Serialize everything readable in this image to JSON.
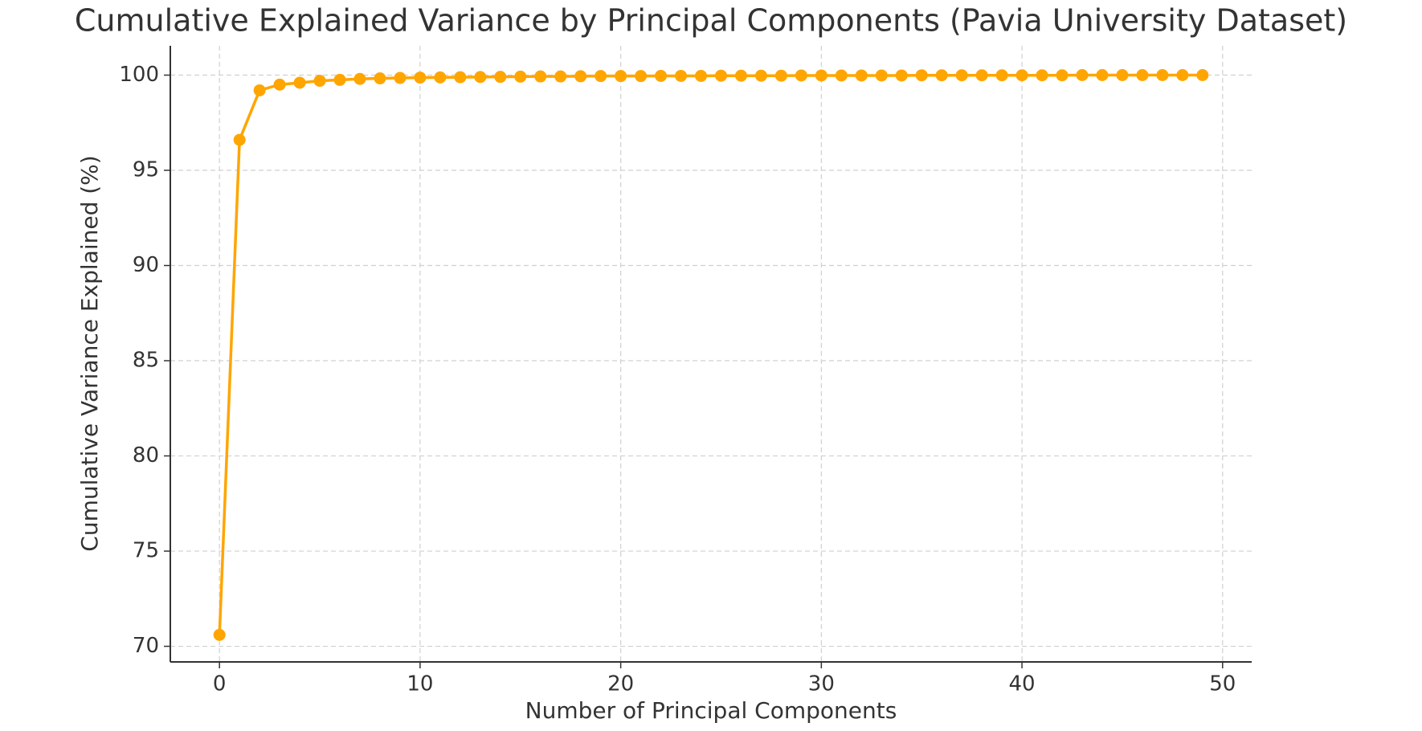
{
  "chart_data": {
    "type": "line",
    "title": "Cumulative Explained Variance by Principal Components (Pavia University Dataset)",
    "x_label": "Number of Principal Components",
    "y_label": "Cumulative Variance Explained (%)",
    "x": [
      0,
      1,
      2,
      3,
      4,
      5,
      6,
      7,
      8,
      9,
      10,
      11,
      12,
      13,
      14,
      15,
      16,
      17,
      18,
      19,
      20,
      21,
      22,
      23,
      24,
      25,
      26,
      27,
      28,
      29,
      30,
      31,
      32,
      33,
      34,
      35,
      36,
      37,
      38,
      39,
      40,
      41,
      42,
      43,
      44,
      45,
      46,
      47,
      48,
      49
    ],
    "series": [
      {
        "name": "Cumulative Variance Explained",
        "color": "#ffa500",
        "values": [
          70.6,
          96.6,
          99.2,
          99.5,
          99.6,
          99.7,
          99.75,
          99.8,
          99.83,
          99.85,
          99.87,
          99.88,
          99.89,
          99.9,
          99.91,
          99.92,
          99.93,
          99.93,
          99.94,
          99.95,
          99.95,
          99.95,
          99.96,
          99.96,
          99.96,
          99.97,
          99.97,
          99.97,
          99.97,
          99.98,
          99.98,
          99.98,
          99.98,
          99.98,
          99.98,
          99.99,
          99.99,
          99.99,
          99.99,
          99.99,
          99.99,
          99.99,
          99.99,
          100,
          100,
          100,
          100,
          100,
          100,
          100
        ]
      }
    ],
    "xlim": [
      -2.45,
      51.45
    ],
    "ylim": [
      69.18,
      101.54
    ],
    "xticks": [
      0,
      10,
      20,
      30,
      40,
      50
    ],
    "yticks": [
      70,
      75,
      80,
      85,
      90,
      95,
      100
    ],
    "grid": true
  }
}
